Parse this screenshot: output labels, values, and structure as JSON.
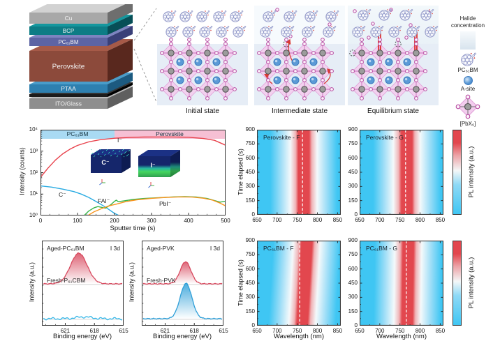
{
  "colors": {
    "heat_cyan": "#3fc6f3",
    "heat_red": "#e2474e",
    "band_pcbm": "#a9daf3",
    "band_pvk": "#f6c0d4",
    "lattice_bg": "#e6edf6",
    "diamond": "#f3cdee",
    "diamond_edge": "#e2a3da",
    "halide_stroke": "#b5479f",
    "halide_fill": "#fcf2fb",
    "pb_fill": "#9c9c9c",
    "pb_stroke": "#4f4f4f",
    "asite_fill": "#5b9ad6",
    "asite_stroke": "#3b79bd",
    "bond": "#c56ab8",
    "fullerene": "#8d94c6",
    "arrow_red": "#d93a34"
  },
  "device": {
    "layers": [
      {
        "label": "Cu",
        "front": "#a8a8a8",
        "top": "#d2d2d2",
        "side": "#6e6e6e",
        "h": 16,
        "fs": 8.5
      },
      {
        "label": "BCP",
        "front": "#0d7c85",
        "top": "#15979e",
        "side": "#074f57",
        "h": 12,
        "fs": 8
      },
      {
        "label": "PC₆₁BM",
        "front": "#5d64a4",
        "top": "#7d84c0",
        "side": "#3a4078",
        "h": 12,
        "fs": 8
      },
      {
        "label": "Perovskite",
        "front": "#8c4a3b",
        "top": "#a65a48",
        "side": "#59281e",
        "h": 44,
        "fs": 10
      },
      {
        "label": "PTAA",
        "front": "#2e80b0",
        "top": "#4a9cc9",
        "side": "#1c5a80",
        "h": 12,
        "fs": 8.5
      },
      {
        "label": "",
        "front": "#1b1b1b",
        "top": "#343434",
        "side": "#000000",
        "h": 4,
        "fs": 7
      },
      {
        "label": "ITO/Glass",
        "front": "#8e8e8e",
        "top": "#bcbcbc",
        "side": "#5f5f5f",
        "h": 15,
        "fs": 8.5
      }
    ]
  },
  "states": [
    {
      "caption": "Initial state"
    },
    {
      "caption": "Intermediate state"
    },
    {
      "caption": "Equilibrium state"
    }
  ],
  "legend": {
    "halide_line1": "Halide",
    "halide_line2": "concentration",
    "pcbm_label": "PC₆₁BM",
    "asite_label": "A-site",
    "pbx_label": "[PbX₆]"
  },
  "tof": {
    "y_tick_labels": [
      "10⁰",
      "10¹",
      "10²",
      "10³",
      "10⁴"
    ],
    "band_left_label": "PC₆₁BM",
    "band_right_label": "Perovskite",
    "inset_left_label": "C⁻",
    "inset_right_label": "I⁻"
  },
  "chart_data": [
    {
      "id": "tof_sims_depth_profile",
      "type": "line",
      "xlabel": "Sputter time (s)",
      "ylabel": "Intensity (counts)",
      "x_ticks": [
        0,
        100,
        200,
        300,
        400,
        500
      ],
      "x_range": [
        0,
        500
      ],
      "y_scale": "log10",
      "y_range": [
        1,
        10000
      ],
      "regions": [
        {
          "label": "PC₆₁BM",
          "x": [
            0,
            200
          ]
        },
        {
          "label": "Perovskite",
          "x": [
            200,
            500
          ]
        }
      ],
      "series": [
        {
          "name": "I⁻",
          "color": "#e8414b",
          "points": [
            [
              0,
              60
            ],
            [
              20,
              160
            ],
            [
              40,
              380
            ],
            [
              60,
              750
            ],
            [
              80,
              1250
            ],
            [
              100,
              1850
            ],
            [
              130,
              2700
            ],
            [
              160,
              3400
            ],
            [
              200,
              4000
            ],
            [
              240,
              4350
            ],
            [
              280,
              4550
            ],
            [
              320,
              4600
            ],
            [
              360,
              4600
            ],
            [
              400,
              4450
            ],
            [
              440,
              3900
            ],
            [
              470,
              3200
            ],
            [
              500,
              1900
            ]
          ]
        },
        {
          "name": "C⁻",
          "color": "#29abe2",
          "points": [
            [
              0,
              24
            ],
            [
              30,
              21
            ],
            [
              60,
              17
            ],
            [
              90,
              13
            ],
            [
              110,
              10
            ],
            [
              130,
              7
            ],
            [
              150,
              4.5
            ],
            [
              170,
              2.8
            ],
            [
              185,
              1.9
            ],
            [
              200,
              1.25
            ],
            [
              212,
              1.0
            ]
          ]
        },
        {
          "name": "FAI⁻",
          "color": "#39b54a",
          "points": [
            [
              118,
              1.0
            ],
            [
              130,
              1.6
            ],
            [
              145,
              2.3
            ],
            [
              155,
              2.6
            ],
            [
              165,
              2.4
            ],
            [
              175,
              2.2
            ],
            [
              190,
              3.2
            ],
            [
              200,
              4.6
            ],
            [
              205,
              5.2
            ],
            [
              210,
              4.4
            ],
            [
              225,
              4.8
            ],
            [
              250,
              5.6
            ],
            [
              280,
              6.2
            ],
            [
              320,
              6.8
            ],
            [
              360,
              7.4
            ],
            [
              390,
              7.6
            ],
            [
              420,
              7.3
            ],
            [
              450,
              6.2
            ],
            [
              470,
              5.0
            ],
            [
              485,
              4.2
            ],
            [
              500,
              4.6
            ]
          ]
        },
        {
          "name": "PbI⁻",
          "color": "#f7941e",
          "points": [
            [
              128,
              1.0
            ],
            [
              145,
              1.5
            ],
            [
              165,
              2.1
            ],
            [
              185,
              2.8
            ],
            [
              205,
              3.4
            ],
            [
              230,
              4.4
            ],
            [
              260,
              5.4
            ],
            [
              300,
              6.3
            ],
            [
              340,
              7.0
            ],
            [
              380,
              7.4
            ],
            [
              410,
              7.2
            ],
            [
              440,
              6.4
            ],
            [
              465,
              5.2
            ],
            [
              485,
              3.8
            ],
            [
              500,
              2.8
            ]
          ]
        }
      ]
    },
    {
      "id": "pl_heatmaps",
      "type": "heatmap",
      "xlabel": "Wavelength (nm)",
      "ylabel": "Time elapsed (s)",
      "colorbar_label": "PL intensity (a.u.)",
      "x_ticks": [
        650,
        700,
        750,
        800,
        850
      ],
      "y_ticks": [
        0,
        150,
        300,
        450,
        600,
        750,
        900
      ],
      "x_range": [
        650,
        858
      ],
      "y_range": [
        0,
        900
      ],
      "panels": [
        {
          "title": "Perovskite - F",
          "row": 0,
          "col": 0,
          "dash_nm": 763,
          "band_nm_bottom": 766,
          "band_nm_top": 766
        },
        {
          "title": "Perovskite - G",
          "row": 0,
          "col": 1,
          "dash_nm": 764,
          "band_nm_bottom": 767,
          "band_nm_top": 767
        },
        {
          "title": "PC₆₁BM - F",
          "row": 1,
          "col": 0,
          "dash_nm": 756,
          "band_nm_bottom": 762,
          "band_nm_top": 774
        },
        {
          "title": "PC₆₁BM - G",
          "row": 1,
          "col": 1,
          "dash_nm": 766,
          "band_nm_bottom": 768,
          "band_nm_top": 771
        }
      ]
    },
    {
      "id": "xps_i3d",
      "type": "line",
      "xlabel": "Binding energy (eV)",
      "ylabel": "Intensity (a.u.)",
      "x_ticks": [
        621,
        618,
        615
      ],
      "x_range": [
        623.4,
        615
      ],
      "panels": [
        {
          "top_label": "Aged-PC₆₁BM",
          "corner_label": "I 3d",
          "bottom_label": "Fresh-P₆₁CBM",
          "top_curve": {
            "color": "#d84a5f",
            "center": 619.6,
            "sigma": 0.85,
            "amp": 1.0,
            "shape": "peak"
          },
          "bottom_curve": {
            "color": "#35b7e8",
            "shape": "flat",
            "amp": 0.05
          }
        },
        {
          "top_label": "Aged-PVK",
          "corner_label": "I 3d",
          "bottom_label": "Fresh-PVK",
          "top_curve": {
            "color": "#d84a5f",
            "center": 618.9,
            "sigma": 0.55,
            "amp": 0.72,
            "shape": "peak"
          },
          "bottom_curve": {
            "color": "#2f9fd8",
            "center": 618.85,
            "sigma": 0.6,
            "amp": 1.15,
            "shape": "peak"
          }
        }
      ]
    }
  ]
}
